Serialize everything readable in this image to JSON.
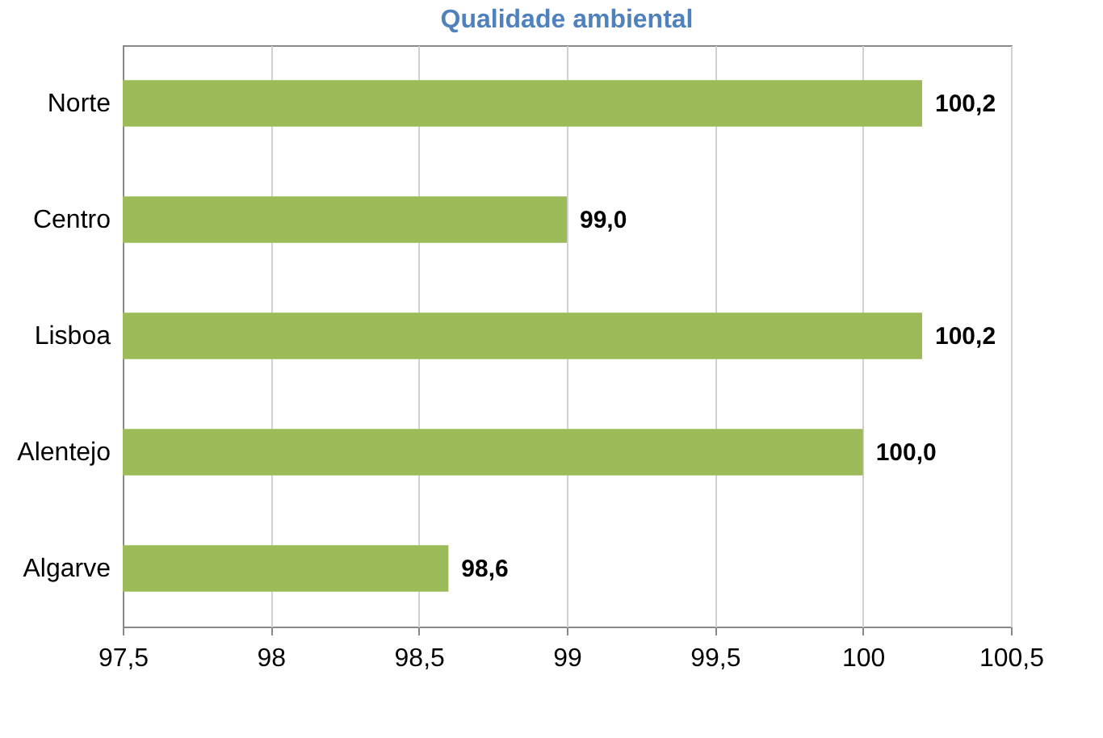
{
  "chart_data": {
    "type": "bar",
    "orientation": "horizontal",
    "title": "Qualidade ambiental",
    "categories": [
      "Norte",
      "Centro",
      "Lisboa",
      "Alentejo",
      "Algarve"
    ],
    "values": [
      100.2,
      99.0,
      100.2,
      100.0,
      98.6
    ],
    "value_labels": [
      "100,2",
      "99,0",
      "100,2",
      "100,0",
      "98,6"
    ],
    "color": "#9bbb59",
    "xlim": [
      97.5,
      100.5
    ],
    "xticks": [
      {
        "value": 97.5,
        "label": "97,5"
      },
      98,
      {
        "value": 98.5,
        "label": "98,5"
      },
      99,
      {
        "value": 99.5,
        "label": "99,5"
      },
      100,
      {
        "value": 100.5,
        "label": "100,5"
      }
    ],
    "grid": "x"
  }
}
